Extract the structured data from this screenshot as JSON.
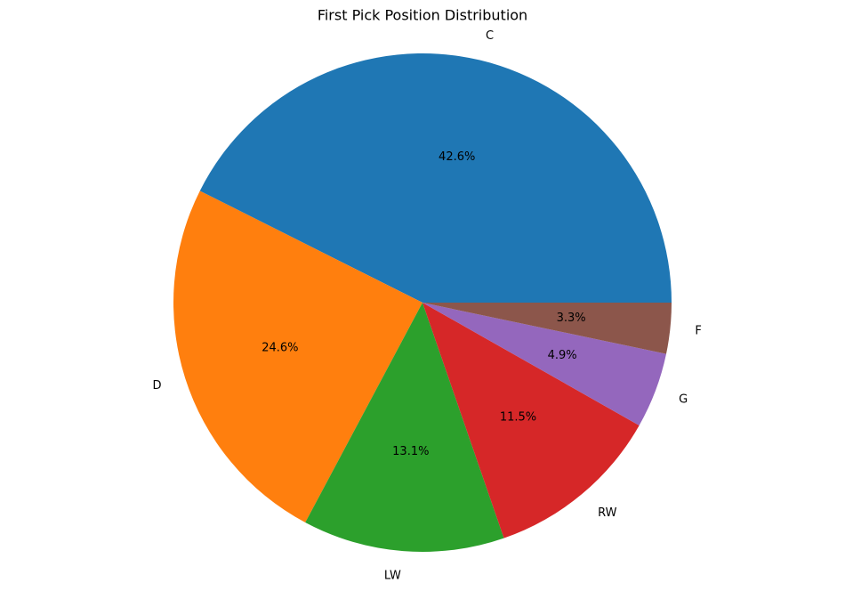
{
  "chart_data": {
    "type": "pie",
    "title": "First Pick Position Distribution",
    "categories": [
      "C",
      "D",
      "LW",
      "RW",
      "G",
      "F"
    ],
    "values": [
      42.6,
      24.6,
      13.1,
      11.5,
      4.9,
      3.3
    ],
    "value_labels": [
      "42.6%",
      "24.6%",
      "13.1%",
      "11.5%",
      "4.9%",
      "3.3%"
    ],
    "colors": [
      "#1f77b4",
      "#ff7f0e",
      "#2ca02c",
      "#d62728",
      "#9467bd",
      "#8c564b"
    ]
  }
}
